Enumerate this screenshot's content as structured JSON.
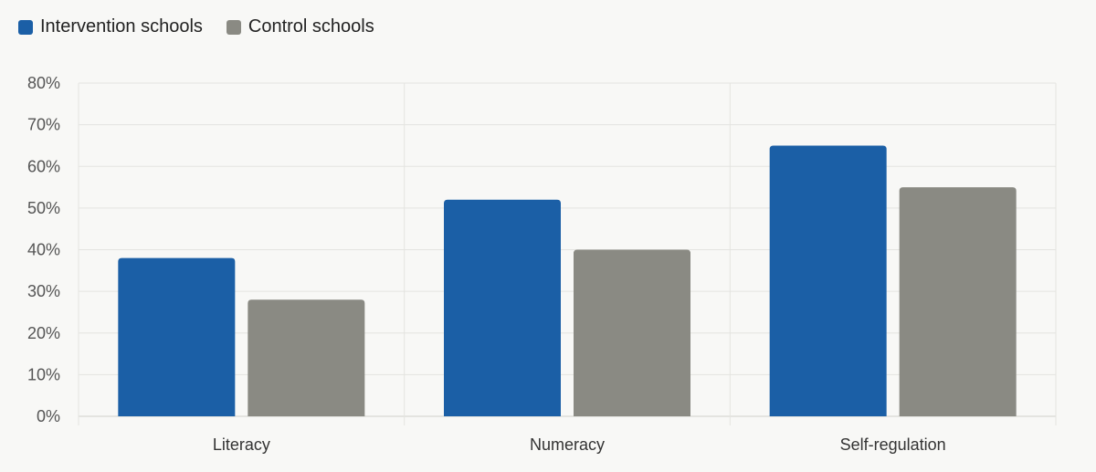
{
  "chart_data": {
    "type": "bar",
    "categories": [
      "Literacy",
      "Numeracy",
      "Self-regulation"
    ],
    "series": [
      {
        "name": "Intervention schools",
        "values": [
          38,
          52,
          65
        ],
        "color": "#1b5fa6"
      },
      {
        "name": "Control schools",
        "values": [
          28,
          40,
          55
        ],
        "color": "#8a8a83"
      }
    ],
    "y_ticks": [
      "0%",
      "10%",
      "20%",
      "30%",
      "40%",
      "50%",
      "60%",
      "70%",
      "80%"
    ],
    "ylim": [
      0,
      80
    ],
    "grid": true,
    "legend_position": "top-left"
  }
}
